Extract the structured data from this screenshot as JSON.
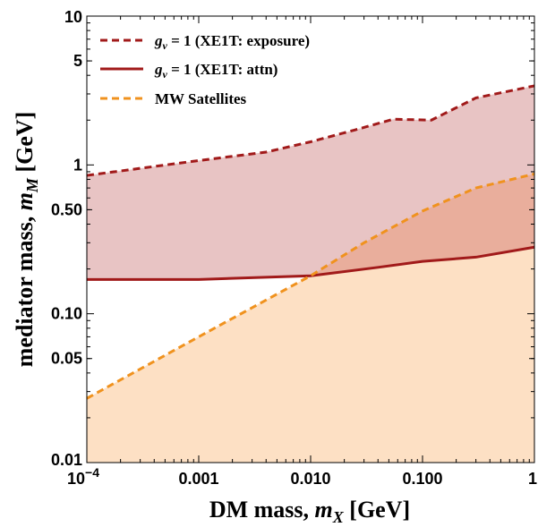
{
  "chart_data": {
    "type": "area",
    "xscale": "log",
    "yscale": "log",
    "xlim": [
      0.0001,
      1
    ],
    "ylim": [
      0.01,
      10
    ],
    "xlabel": "DM mass, m_X [GeV]",
    "ylabel": "mediator mass, m_M [GeV]",
    "x_ticks": [
      {
        "value": 0.0001,
        "label": "10^-4"
      },
      {
        "value": 0.001,
        "label": "0.001"
      },
      {
        "value": 0.01,
        "label": "0.010"
      },
      {
        "value": 0.1,
        "label": "0.100"
      },
      {
        "value": 1,
        "label": "1"
      }
    ],
    "y_ticks": [
      {
        "value": 0.01,
        "label": "0.01"
      },
      {
        "value": 0.05,
        "label": "0.05"
      },
      {
        "value": 0.1,
        "label": "0.10"
      },
      {
        "value": 0.5,
        "label": "0.50"
      },
      {
        "value": 1,
        "label": "1"
      },
      {
        "value": 5,
        "label": "5"
      },
      {
        "value": 10,
        "label": "10"
      }
    ],
    "grid": false,
    "legend_position": "top-left",
    "series": [
      {
        "name": "g_v = 1 (XE1T: exposure)",
        "style": "dashed",
        "color": "#a11a1a",
        "x": [
          0.0001,
          0.001,
          0.004,
          0.01,
          0.025,
          0.055,
          0.12,
          0.3,
          1
        ],
        "y": [
          0.85,
          1.07,
          1.22,
          1.43,
          1.72,
          2.03,
          2.0,
          2.82,
          3.4
        ]
      },
      {
        "name": "g_v = 1 (XE1T: attn)",
        "style": "solid",
        "color": "#a11a1a",
        "x": [
          0.0001,
          0.001,
          0.01,
          0.04,
          0.1,
          0.3,
          1
        ],
        "y": [
          0.17,
          0.17,
          0.18,
          0.205,
          0.225,
          0.24,
          0.28
        ]
      },
      {
        "name": "MW Satellites",
        "style": "dashed",
        "color": "#f0921e",
        "x": [
          0.0001,
          0.001,
          0.01,
          0.03,
          0.1,
          0.3,
          1
        ],
        "y": [
          0.027,
          0.07,
          0.18,
          0.3,
          0.49,
          0.7,
          0.87
        ]
      }
    ],
    "colors": {
      "exposure_fill": "#e8c4c4",
      "satellite_fill": "#fde0c4",
      "overlap_fill": "#e9ae9c"
    }
  }
}
